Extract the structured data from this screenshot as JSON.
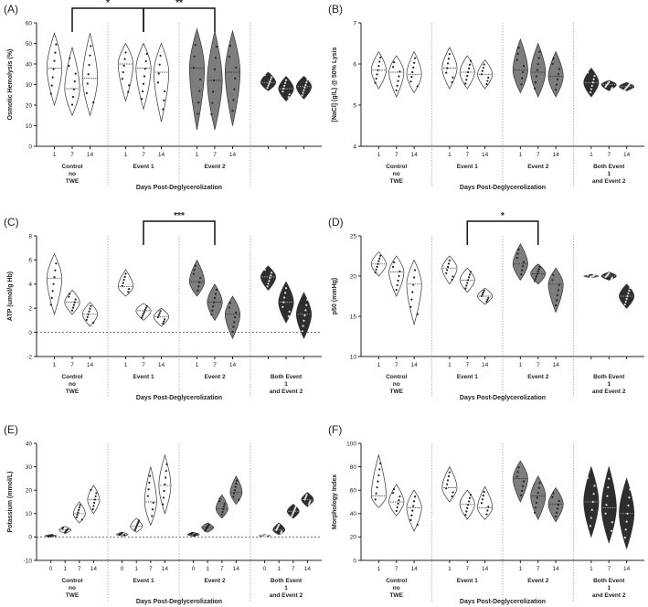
{
  "figure": {
    "description_colors": {
      "axis": "#222222",
      "light_fill": "#ffffff",
      "mid_fill": "#7d7d7d",
      "dark_fill": "#2e2e2e",
      "separator": "#999999"
    }
  },
  "chart_data": [
    {
      "id": "A",
      "label": "(A)",
      "type": "violin",
      "ylabel": "Osmotic Hemolysis (%)",
      "xlabel": "Days Post-Deglycerolization",
      "ylim": [
        0,
        60
      ],
      "yticks": [
        0,
        10,
        20,
        30,
        40,
        50,
        60
      ],
      "groups": [
        {
          "name": "Control no TWE",
          "name_lines": [
            "Control",
            "no",
            "TWE"
          ],
          "shade": "light",
          "days": [
            "1",
            "7",
            "14"
          ],
          "medians": [
            38,
            28,
            33
          ],
          "ranges": [
            [
              20,
              55
            ],
            [
              15,
              48
            ],
            [
              15,
              55
            ]
          ]
        },
        {
          "name": "Event 1",
          "name_lines": [
            "Event 1"
          ],
          "shade": "light",
          "days": [
            "1",
            "7",
            "14"
          ],
          "medians": [
            40,
            38,
            36
          ],
          "ranges": [
            [
              22,
              50
            ],
            [
              18,
              50
            ],
            [
              12,
              50
            ]
          ]
        },
        {
          "name": "Event 2",
          "name_lines": [
            "Event 2"
          ],
          "shade": "mid",
          "days": [
            "1",
            "7",
            "14"
          ],
          "medians": [
            38,
            32,
            36
          ],
          "ranges": [
            [
              8,
              57
            ],
            [
              8,
              56
            ],
            [
              10,
              56
            ]
          ]
        },
        {
          "name": "Both Event 1 and Event 2",
          "name_lines": [],
          "shade": "dark",
          "days": [
            "",
            "",
            ""
          ],
          "medians": [
            31,
            28,
            29
          ],
          "ranges": [
            [
              27,
              36
            ],
            [
              22,
              34
            ],
            [
              23,
              34
            ]
          ]
        }
      ],
      "significance": [
        {
          "from": [
            0,
            1
          ],
          "to": [
            1,
            1
          ],
          "label": "*"
        },
        {
          "from": [
            1,
            1
          ],
          "to": [
            2,
            1
          ],
          "label": "**"
        }
      ]
    },
    {
      "id": "B",
      "label": "(B)",
      "type": "violin",
      "ylabel": "[NaCl] (g/L) @ 50% Lysis",
      "xlabel": "Days Post-Deglycerolization",
      "ylim": [
        4,
        7
      ],
      "yticks": [
        4,
        5,
        6,
        7
      ],
      "groups": [
        {
          "name": "Control no TWE",
          "name_lines": [
            "Control",
            "no",
            "TWE"
          ],
          "shade": "light",
          "days": [
            "1",
            "7",
            "14"
          ],
          "medians": [
            5.85,
            5.8,
            5.75
          ],
          "ranges": [
            [
              5.4,
              6.3
            ],
            [
              5.2,
              6.2
            ],
            [
              5.3,
              6.3
            ]
          ]
        },
        {
          "name": "Event 1",
          "name_lines": [
            "Event 1"
          ],
          "shade": "light",
          "days": [
            "1",
            "7",
            "14"
          ],
          "medians": [
            5.9,
            5.8,
            5.75
          ],
          "ranges": [
            [
              5.4,
              6.4
            ],
            [
              5.4,
              6.2
            ],
            [
              5.4,
              6.1
            ]
          ]
        },
        {
          "name": "Event 2",
          "name_lines": [
            "Event 2"
          ],
          "shade": "mid",
          "days": [
            "1",
            "7",
            "14"
          ],
          "medians": [
            5.85,
            5.8,
            5.7
          ],
          "ranges": [
            [
              5.3,
              6.6
            ],
            [
              5.2,
              6.5
            ],
            [
              5.2,
              6.3
            ]
          ]
        },
        {
          "name": "Both Event 1 and Event 2",
          "name_lines": [
            "Both Event",
            "1",
            "and Event 2"
          ],
          "shade": "dark",
          "days": [
            "1",
            "7",
            "14"
          ],
          "medians": [
            5.55,
            5.5,
            5.45
          ],
          "ranges": [
            [
              5.2,
              5.9
            ],
            [
              5.35,
              5.6
            ],
            [
              5.35,
              5.55
            ]
          ]
        }
      ],
      "significance": []
    },
    {
      "id": "C",
      "label": "(C)",
      "type": "violin",
      "ylabel": "ATP (umol/g Hb)",
      "xlabel": "Days Post-Deglycerolization",
      "ylim": [
        -2,
        8
      ],
      "yticks": [
        -2,
        0,
        2,
        4,
        6,
        8
      ],
      "dashed_zero": true,
      "groups": [
        {
          "name": "Control no TWE",
          "name_lines": [
            "Control",
            "no",
            "TWE"
          ],
          "shade": "light",
          "days": [
            "1",
            "7",
            "14"
          ],
          "medians": [
            4.5,
            2.5,
            1.5
          ],
          "ranges": [
            [
              1.5,
              6.5
            ],
            [
              1.5,
              3.5
            ],
            [
              0.5,
              2.5
            ]
          ]
        },
        {
          "name": "Event 1",
          "name_lines": [
            "Event 1"
          ],
          "shade": "light",
          "days": [
            "1",
            "7",
            "14"
          ],
          "medians": [
            3.8,
            1.8,
            1.3
          ],
          "ranges": [
            [
              3.0,
              5.2
            ],
            [
              1.0,
              2.4
            ],
            [
              0.5,
              2.0
            ]
          ]
        },
        {
          "name": "Event 2",
          "name_lines": [
            "Event 2"
          ],
          "shade": "mid",
          "days": [
            "1",
            "7",
            "14"
          ],
          "medians": [
            4.2,
            2.5,
            1.5
          ],
          "ranges": [
            [
              3.0,
              6.0
            ],
            [
              1.0,
              4.0
            ],
            [
              -0.5,
              3.0
            ]
          ]
        },
        {
          "name": "Both Event 1 and Event 2",
          "name_lines": [
            "Both Event",
            "1",
            "and Event 2"
          ],
          "shade": "dark",
          "days": [
            "",
            "",
            ""
          ],
          "medians": [
            4.6,
            2.5,
            1.5
          ],
          "ranges": [
            [
              3.5,
              5.5
            ],
            [
              0.8,
              4.2
            ],
            [
              -0.5,
              3.3
            ]
          ]
        }
      ],
      "significance": [
        {
          "from": [
            1,
            1
          ],
          "to": [
            2,
            1
          ],
          "label": "***"
        }
      ]
    },
    {
      "id": "D",
      "label": "(D)",
      "type": "violin",
      "ylabel": "p50 (mmHg)",
      "xlabel": "Days Post-Deglycerolization",
      "ylim": [
        10,
        25
      ],
      "yticks": [
        10,
        15,
        20,
        25
      ],
      "groups": [
        {
          "name": "Control no TWE",
          "name_lines": [
            "Control",
            "no",
            "TWE"
          ],
          "shade": "light",
          "days": [
            "1",
            "7",
            "14"
          ],
          "medians": [
            21.5,
            20.5,
            19
          ],
          "ranges": [
            [
              20,
              23
            ],
            [
              17.5,
              22.5
            ],
            [
              14,
              22
            ]
          ]
        },
        {
          "name": "Event 1",
          "name_lines": [
            "Event 1"
          ],
          "shade": "light",
          "days": [
            "1",
            "7",
            "14"
          ],
          "medians": [
            21,
            19.5,
            17.5
          ],
          "ranges": [
            [
              19,
              22.5
            ],
            [
              18,
              21
            ],
            [
              16.5,
              18.5
            ]
          ]
        },
        {
          "name": "Event 2",
          "name_lines": [
            "Event 2"
          ],
          "shade": "mid",
          "days": [
            "1",
            "7",
            "14"
          ],
          "medians": [
            21.5,
            20.3,
            19
          ],
          "ranges": [
            [
              19.5,
              24
            ],
            [
              19,
              21.5
            ],
            [
              15.5,
              21
            ]
          ]
        },
        {
          "name": "Both Event 1 and Event 2",
          "name_lines": [
            "Both Event",
            "1",
            "and Event 2"
          ],
          "shade": "dark",
          "days": [
            "",
            "",
            ""
          ],
          "medians": [
            20,
            20,
            17.5
          ],
          "ranges": [
            [
              19.8,
              20.2
            ],
            [
              19.5,
              20.5
            ],
            [
              16,
              19
            ]
          ]
        }
      ],
      "significance": [
        {
          "from": [
            1,
            1
          ],
          "to": [
            2,
            1
          ],
          "label": "*"
        }
      ]
    },
    {
      "id": "E",
      "label": "(E)",
      "type": "violin",
      "ylabel": "Potassium (mmol/L)",
      "xlabel": "Days Post-Deglycerolization",
      "ylim": [
        -10,
        40
      ],
      "yticks": [
        -10,
        0,
        10,
        20,
        30,
        40
      ],
      "dashed_zero": true,
      "groups": [
        {
          "name": "Control no TWE",
          "name_lines": [
            "Control",
            "no",
            "TWE"
          ],
          "shade": "light",
          "days": [
            "0",
            "1",
            "7",
            "14"
          ],
          "medians": [
            0.5,
            3,
            10,
            16
          ],
          "ranges": [
            [
              0,
              1
            ],
            [
              1.5,
              4.5
            ],
            [
              6,
              15
            ],
            [
              10,
              22
            ]
          ]
        },
        {
          "name": "Event 1",
          "name_lines": [
            "Event 1"
          ],
          "shade": "light",
          "days": [
            "0",
            "1",
            "7",
            "14"
          ],
          "medians": [
            1,
            4.5,
            15,
            22
          ],
          "ranges": [
            [
              0.5,
              2
            ],
            [
              2,
              8
            ],
            [
              5,
              30
            ],
            [
              10,
              35
            ]
          ]
        },
        {
          "name": "Event 2",
          "name_lines": [
            "Event 2"
          ],
          "shade": "mid",
          "days": [
            "0",
            "1",
            "7",
            "14"
          ],
          "medians": [
            1,
            4,
            12,
            19
          ],
          "ranges": [
            [
              0.3,
              2
            ],
            [
              2,
              6
            ],
            [
              8,
              18
            ],
            [
              14,
              26
            ]
          ]
        },
        {
          "name": "Both Event 1 and Event 2",
          "name_lines": [
            "Both Event",
            "1",
            "and Event 2"
          ],
          "shade": "dark",
          "days": [
            "0",
            "1",
            "7",
            "14"
          ],
          "medians": [
            0.5,
            3,
            11,
            16
          ],
          "ranges": [
            [
              0.2,
              1
            ],
            [
              1,
              6
            ],
            [
              8,
              14
            ],
            [
              13,
              19
            ]
          ]
        }
      ],
      "significance": []
    },
    {
      "id": "F",
      "label": "(F)",
      "type": "violin",
      "ylabel": "Morphology Index",
      "xlabel": "Days Post-Deglycerolization",
      "ylim": [
        0,
        100
      ],
      "yticks": [
        0,
        20,
        40,
        60,
        80,
        100
      ],
      "groups": [
        {
          "name": "Control no TWE",
          "name_lines": [
            "Control",
            "no",
            "TWE"
          ],
          "shade": "light",
          "days": [
            "1",
            "7",
            "14"
          ],
          "medians": [
            55,
            50,
            45
          ],
          "ranges": [
            [
              45,
              90
            ],
            [
              38,
              65
            ],
            [
              25,
              60
            ]
          ]
        },
        {
          "name": "Event 1",
          "name_lines": [
            "Event 1"
          ],
          "shade": "light",
          "days": [
            "1",
            "7",
            "14"
          ],
          "medians": [
            62,
            48,
            45
          ],
          "ranges": [
            [
              50,
              80
            ],
            [
              35,
              60
            ],
            [
              35,
              63
            ]
          ]
        },
        {
          "name": "Event 2",
          "name_lines": [
            "Event 2"
          ],
          "shade": "mid",
          "days": [
            "1",
            "7",
            "14"
          ],
          "medians": [
            70,
            55,
            48
          ],
          "ranges": [
            [
              50,
              85
            ],
            [
              35,
              72
            ],
            [
              33,
              62
            ]
          ]
        },
        {
          "name": "Both Event 1 and Event 2",
          "name_lines": [
            "Both Event",
            "1",
            "and Event 2"
          ],
          "shade": "dark",
          "days": [
            "1",
            "7",
            "14"
          ],
          "medians": [
            50,
            45,
            40
          ],
          "ranges": [
            [
              20,
              80
            ],
            [
              15,
              80
            ],
            [
              10,
              70
            ]
          ]
        }
      ],
      "significance": []
    }
  ]
}
